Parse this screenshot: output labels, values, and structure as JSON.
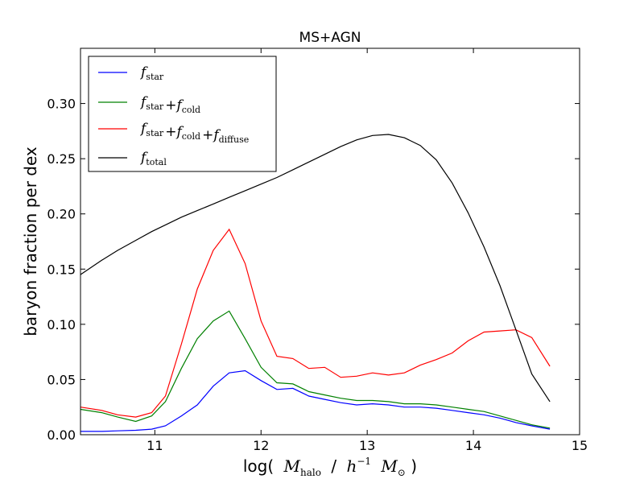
{
  "chart_data": {
    "type": "line",
    "title": "MS+AGN",
    "xlabel": "log( M_halo / h^-1 M_⊙)",
    "ylabel": "baryon fraction per dex",
    "xlim": [
      10.3,
      15.0
    ],
    "ylim": [
      0.0,
      0.35
    ],
    "xticks": [
      11,
      12,
      13,
      14,
      15
    ],
    "xtick_labels": [
      "11",
      "12",
      "13",
      "14",
      "15"
    ],
    "yticks": [
      0.0,
      0.05,
      0.1,
      0.15,
      0.2,
      0.25,
      0.3
    ],
    "ytick_labels": [
      "0.00",
      "0.05",
      "0.10",
      "0.15",
      "0.20",
      "0.25",
      "0.30"
    ],
    "grid": false,
    "legend_position": "top-left",
    "x": [
      10.3,
      10.5,
      10.65,
      10.82,
      10.97,
      11.1,
      11.25,
      11.4,
      11.55,
      11.7,
      11.85,
      12.0,
      12.15,
      12.3,
      12.45,
      12.6,
      12.75,
      12.9,
      13.05,
      13.2,
      13.35,
      13.5,
      13.65,
      13.8,
      13.95,
      14.1,
      14.25,
      14.4,
      14.55,
      14.72
    ],
    "series": [
      {
        "name": "f_star",
        "color": "#0000ff",
        "values": [
          0.003,
          0.003,
          0.0035,
          0.004,
          0.005,
          0.008,
          0.017,
          0.027,
          0.044,
          0.056,
          0.058,
          0.049,
          0.041,
          0.042,
          0.035,
          0.032,
          0.029,
          0.027,
          0.028,
          0.027,
          0.025,
          0.025,
          0.024,
          0.022,
          0.02,
          0.018,
          0.015,
          0.011,
          0.008,
          0.005
        ]
      },
      {
        "name": "f_star + f_cold",
        "color": "#008000",
        "values": [
          0.023,
          0.02,
          0.016,
          0.012,
          0.017,
          0.03,
          0.06,
          0.087,
          0.103,
          0.112,
          0.087,
          0.061,
          0.047,
          0.046,
          0.039,
          0.036,
          0.033,
          0.031,
          0.031,
          0.03,
          0.028,
          0.028,
          0.027,
          0.025,
          0.023,
          0.021,
          0.017,
          0.013,
          0.009,
          0.006
        ]
      },
      {
        "name": "f_star + f_cold + f_diffuse",
        "color": "#ff0000",
        "values": [
          0.025,
          0.022,
          0.018,
          0.016,
          0.02,
          0.035,
          0.082,
          0.132,
          0.167,
          0.186,
          0.155,
          0.103,
          0.071,
          0.069,
          0.06,
          0.061,
          0.052,
          0.053,
          0.056,
          0.054,
          0.056,
          0.063,
          0.068,
          0.074,
          0.085,
          0.093,
          0.094,
          0.095,
          0.088,
          0.062
        ]
      },
      {
        "name": "f_total",
        "color": "#000000",
        "values": [
          0.145,
          0.158,
          0.167,
          0.176,
          0.184,
          0.19,
          0.197,
          0.203,
          0.209,
          0.215,
          0.221,
          0.227,
          0.233,
          0.24,
          0.247,
          0.254,
          0.261,
          0.267,
          0.271,
          0.272,
          0.269,
          0.262,
          0.249,
          0.228,
          0.201,
          0.17,
          0.135,
          0.095,
          0.055,
          0.03
        ]
      }
    ]
  },
  "legend": {
    "items": [
      {
        "main": "f",
        "sub": "star",
        "rest": []
      },
      {
        "main": "f",
        "sub": "star",
        "rest": [
          {
            "op": "+",
            "main": "f",
            "sub": "cold"
          }
        ]
      },
      {
        "main": "f",
        "sub": "star",
        "rest": [
          {
            "op": "+",
            "main": "f",
            "sub": "cold"
          },
          {
            "op": "+",
            "main": "f",
            "sub": "diffuse"
          }
        ]
      },
      {
        "main": "f",
        "sub": "total",
        "rest": []
      }
    ]
  },
  "xlabel_parts": {
    "prefix": "log(",
    "m1": "M",
    "m1_sub": "halo",
    "slash": "/",
    "h": "h",
    "h_sup": "−1",
    "m2": "M",
    "m2_sub": "⊙",
    "suffix": ")"
  }
}
